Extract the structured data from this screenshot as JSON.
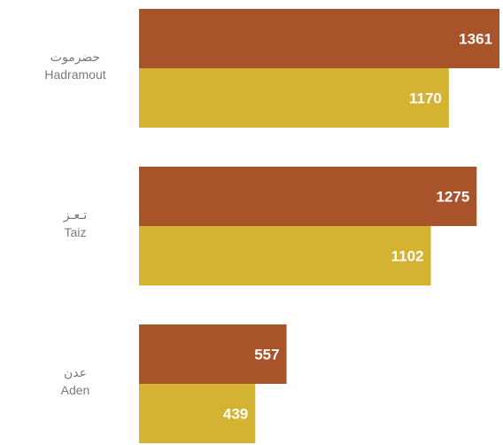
{
  "chart_data": {
    "type": "bar",
    "orientation": "horizontal",
    "categories": [
      {
        "label_ar": "حضرموت",
        "label_en": "Hadramout"
      },
      {
        "label_ar": "تـعـز",
        "label_en": "Taiz"
      },
      {
        "label_ar": "عدن",
        "label_en": "Aden"
      }
    ],
    "series": [
      {
        "color": "#a9532a",
        "values": [
          1361,
          1275,
          557
        ]
      },
      {
        "color": "#d4b332",
        "values": [
          1170,
          1102,
          439
        ]
      }
    ],
    "xlim": [
      0,
      1361
    ],
    "grid": false,
    "legend": "none"
  }
}
